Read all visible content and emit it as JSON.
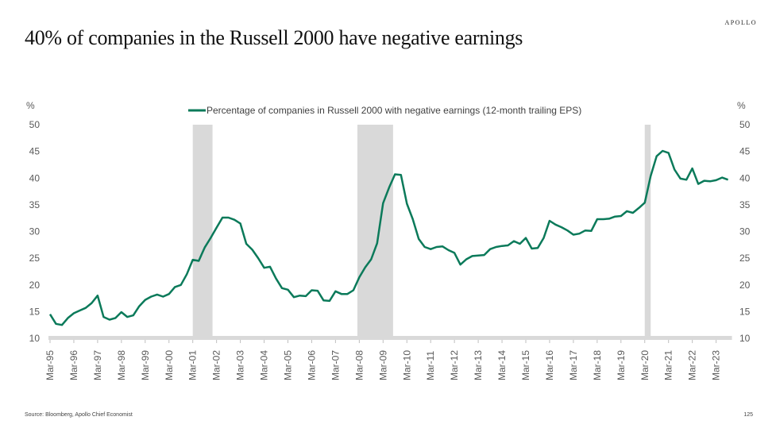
{
  "brand": "APOLLO",
  "title": "40% of companies in the Russell 2000 have negative earnings",
  "footer": {
    "source": "Source: Bloomberg, Apollo Chief Economist",
    "page_number": "125"
  },
  "chart_data": {
    "type": "line",
    "title": "40% of companies in the Russell 2000 have negative earnings",
    "ylabel_left": "%",
    "ylabel_right": "%",
    "ylim": [
      10,
      50
    ],
    "yticks": [
      10,
      15,
      20,
      25,
      30,
      35,
      40,
      45,
      50
    ],
    "xticks": [
      "Mar-95",
      "Mar-96",
      "Mar-97",
      "Mar-98",
      "Mar-99",
      "Mar-00",
      "Mar-01",
      "Mar-02",
      "Mar-03",
      "Mar-04",
      "Mar-05",
      "Mar-06",
      "Mar-07",
      "Mar-08",
      "Mar-09",
      "Mar-10",
      "Mar-11",
      "Mar-12",
      "Mar-13",
      "Mar-14",
      "Mar-15",
      "Mar-16",
      "Mar-17",
      "Mar-18",
      "Mar-19",
      "Mar-20",
      "Mar-21",
      "Mar-22",
      "Mar-23"
    ],
    "legend": {
      "position": "top-center",
      "entries": [
        "Percentage of companies in Russell 2000 with negative earnings (12-month trailing EPS)"
      ]
    },
    "line_color": "#0b7a5a",
    "recession_color": "#d9d9d9",
    "recessions": [
      {
        "start": 2001.0,
        "end": 2001.83
      },
      {
        "start": 2007.92,
        "end": 2009.42
      },
      {
        "start": 2020.0,
        "end": 2020.25
      }
    ],
    "x_start": 1995.0,
    "x_end": 2023.6,
    "series": [
      {
        "name": "Percentage of companies in Russell 2000 with negative earnings (12-month trailing EPS)",
        "frequency": "quarterly",
        "start": "Mar-95",
        "values": [
          14.5,
          12.7,
          12.5,
          13.8,
          14.7,
          15.2,
          15.7,
          16.6,
          18.0,
          14.0,
          13.5,
          13.8,
          14.9,
          14.0,
          14.3,
          16.0,
          17.2,
          17.8,
          18.2,
          17.8,
          18.3,
          19.6,
          20.0,
          22.0,
          24.7,
          24.5,
          27.0,
          28.8,
          30.7,
          32.6,
          32.6,
          32.2,
          31.5,
          27.7,
          26.6,
          25.0,
          23.2,
          23.4,
          21.2,
          19.4,
          19.1,
          17.7,
          18.0,
          17.9,
          19.0,
          18.9,
          17.1,
          17.0,
          18.8,
          18.3,
          18.3,
          19.0,
          21.4,
          23.3,
          24.8,
          27.8,
          35.3,
          38.2,
          40.7,
          40.6,
          35.2,
          32.3,
          28.6,
          27.1,
          26.7,
          27.1,
          27.2,
          26.5,
          26.0,
          23.8,
          24.8,
          25.4,
          25.5,
          25.6,
          26.7,
          27.1,
          27.3,
          27.4,
          28.2,
          27.7,
          28.8,
          26.8,
          26.9,
          28.8,
          32.0,
          31.3,
          30.8,
          30.2,
          29.4,
          29.6,
          30.2,
          30.1,
          32.3,
          32.3,
          32.4,
          32.8,
          32.9,
          33.8,
          33.5,
          34.4,
          35.4,
          40.4,
          44.1,
          45.1,
          44.7,
          41.6,
          39.9,
          39.7,
          41.8,
          38.9,
          39.5,
          39.4,
          39.6,
          40.1,
          39.7
        ]
      }
    ]
  }
}
